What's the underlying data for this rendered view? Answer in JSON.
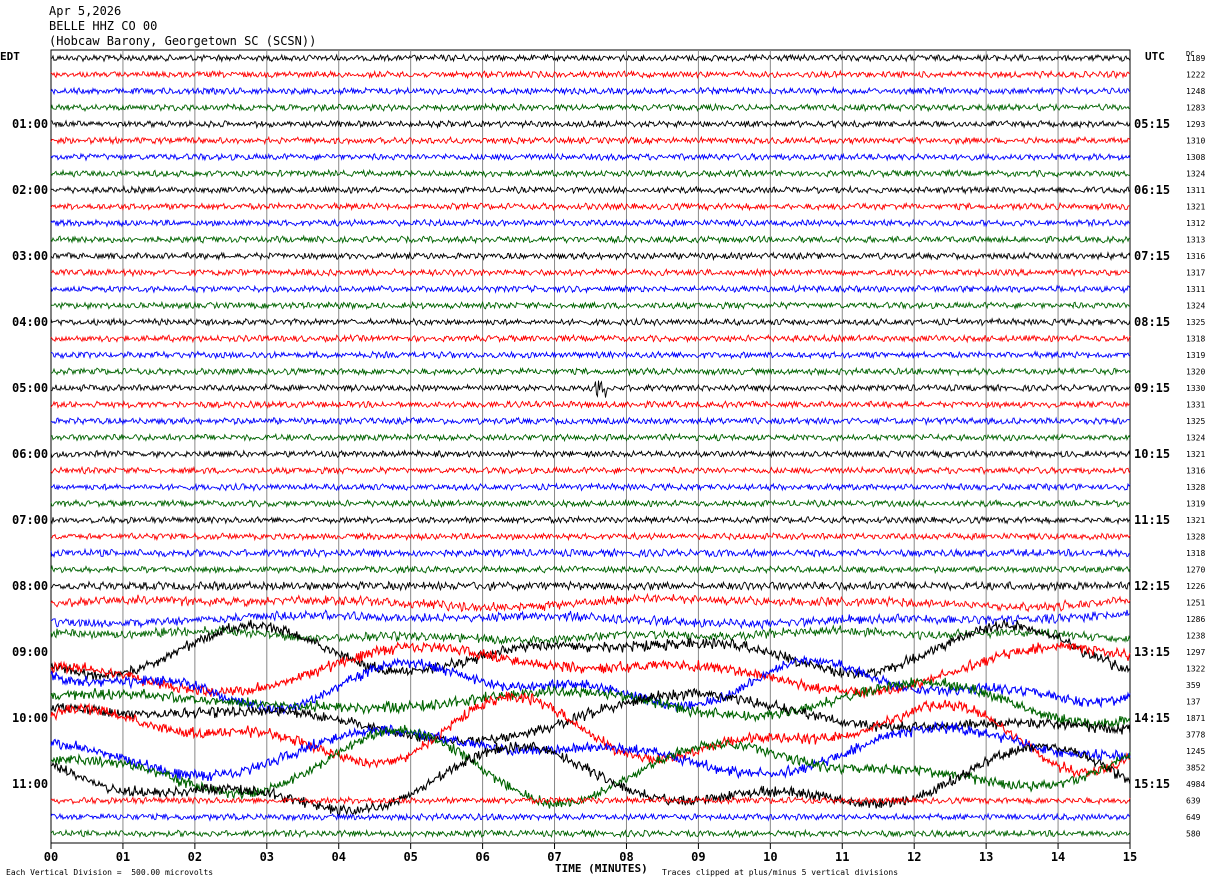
{
  "header": {
    "date": "Apr 5,2026",
    "station": "BELLE HHZ CO 00",
    "location": "(Hobcaw Barony, Georgetown SC (SCSN))"
  },
  "left_tz": "EDT",
  "right_tz": "UTC",
  "dc_header": "DC",
  "chart_data": {
    "type": "line",
    "subtype": "helicorder",
    "xlabel": "TIME (MINUTES)",
    "x_ticks": [
      "00",
      "01",
      "02",
      "03",
      "04",
      "05",
      "06",
      "07",
      "08",
      "09",
      "10",
      "11",
      "12",
      "13",
      "14",
      "15"
    ],
    "xlim": [
      0,
      15
    ],
    "trace_colors": [
      "#000000",
      "#ff0000",
      "#0000ff",
      "#006400"
    ],
    "left_hour_labels": [
      "01:00",
      "02:00",
      "03:00",
      "04:00",
      "05:00",
      "06:00",
      "07:00",
      "08:00",
      "09:00",
      "10:00",
      "11:00"
    ],
    "right_hour_labels": [
      "05:15",
      "06:15",
      "07:15",
      "08:15",
      "09:15",
      "10:15",
      "11:15",
      "12:15",
      "13:15",
      "14:15",
      "15:15"
    ],
    "dc_offsets": [
      1189,
      1222,
      1248,
      1283,
      1293,
      1310,
      1308,
      1324,
      1311,
      1321,
      1312,
      1313,
      1316,
      1317,
      1311,
      1324,
      1325,
      1318,
      1319,
      1320,
      1330,
      1331,
      1325,
      1324,
      1321,
      1316,
      1328,
      1319,
      1321,
      1328,
      1318,
      1270,
      1226,
      1251,
      1286,
      1238,
      1297,
      1322,
      359,
      137,
      1871,
      3778,
      1245,
      3852,
      4984,
      639,
      649,
      580
    ],
    "event": {
      "row": 20,
      "minute": 7.65,
      "note": "clipped local event burst"
    },
    "footer_left": "Each Vertical Division =  500.00 microvolts",
    "footer_right": "Traces clipped at plus/minus 5 vertical divisions"
  }
}
